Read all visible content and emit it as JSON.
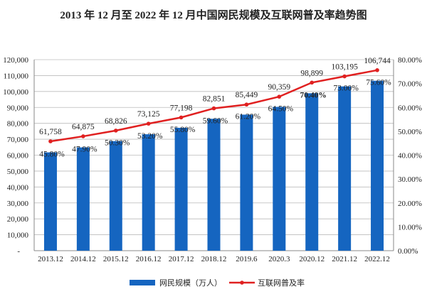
{
  "chart_data": {
    "type": "bar+line",
    "title": "2013 年 12 月至 2022 年 12 月中国网民规模及互联网普及率趋势图",
    "categories": [
      "2013.12",
      "2014.12",
      "2015.12",
      "2016.12",
      "2017.12",
      "2018.12",
      "2019.6",
      "2020.3",
      "2020.12",
      "2021.12",
      "2022.12"
    ],
    "series": [
      {
        "name": "网民规模（万人）",
        "type": "bar",
        "axis": "left",
        "color": "#1565C0",
        "values": [
          61758,
          64875,
          68826,
          73125,
          77198,
          82851,
          85449,
          90359,
          98899,
          103195,
          106744
        ],
        "labels": [
          "61,758",
          "64,875",
          "68,826",
          "73,125",
          "77,198",
          "82,851",
          "85,449",
          "90,359",
          "98,899",
          "103,195",
          "106,744"
        ]
      },
      {
        "name": "互联网普及率",
        "type": "line",
        "axis": "right",
        "color": "#E02020",
        "values": [
          45.8,
          47.9,
          50.3,
          53.2,
          55.8,
          59.6,
          61.2,
          64.5,
          70.4,
          73.0,
          75.6
        ],
        "labels": [
          "45.80%",
          "47.90%",
          "50.30%",
          "53.20%",
          "55.80%",
          "59.60%",
          "61.20%",
          "64.50%",
          "70.40%",
          "73.00%",
          "75.60%"
        ]
      }
    ],
    "ylim_left": [
      0,
      120000
    ],
    "ylim_right": [
      0,
      80
    ],
    "left_ticks": [
      "-",
      "10,000",
      "20,000",
      "30,000",
      "40,000",
      "50,000",
      "60,000",
      "70,000",
      "80,000",
      "90,000",
      "100,000",
      "110,000",
      "120,000"
    ],
    "right_ticks": [
      "0.00%",
      "10.00%",
      "20.00%",
      "30.00%",
      "40.00%",
      "50.00%",
      "60.00%",
      "70.00%",
      "80.00%"
    ],
    "grid": true,
    "legend_position": "bottom"
  }
}
